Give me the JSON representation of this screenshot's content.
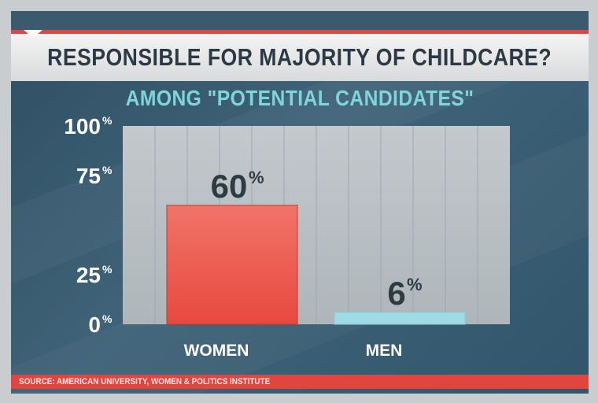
{
  "title": "RESPONSIBLE FOR MAJORITY OF CHILDCARE?",
  "subtitle": "AMONG \"POTENTIAL CANDIDATES\"",
  "source": "SOURCE: AMERICAN UNIVERSITY, WOMEN & POLITICS INSTITUTE",
  "colors": {
    "women_bar": "#e8493f",
    "men_bar": "#9fdbe4",
    "accent_red": "#e0463f",
    "subtitle": "#7fd6da"
  },
  "chart_data": {
    "type": "bar",
    "categories": [
      "WOMEN",
      "MEN"
    ],
    "values": [
      60,
      6
    ],
    "data_labels": [
      "60",
      "6"
    ],
    "data_label_suffix": "%",
    "yticks": [
      {
        "value": 0,
        "label": "0"
      },
      {
        "value": 25,
        "label": "25"
      },
      {
        "value": 75,
        "label": "75"
      },
      {
        "value": 100,
        "label": "100"
      }
    ],
    "ytick_suffix": "%",
    "ylim": [
      0,
      100
    ],
    "grid": true,
    "xlabel": "",
    "ylabel": ""
  }
}
